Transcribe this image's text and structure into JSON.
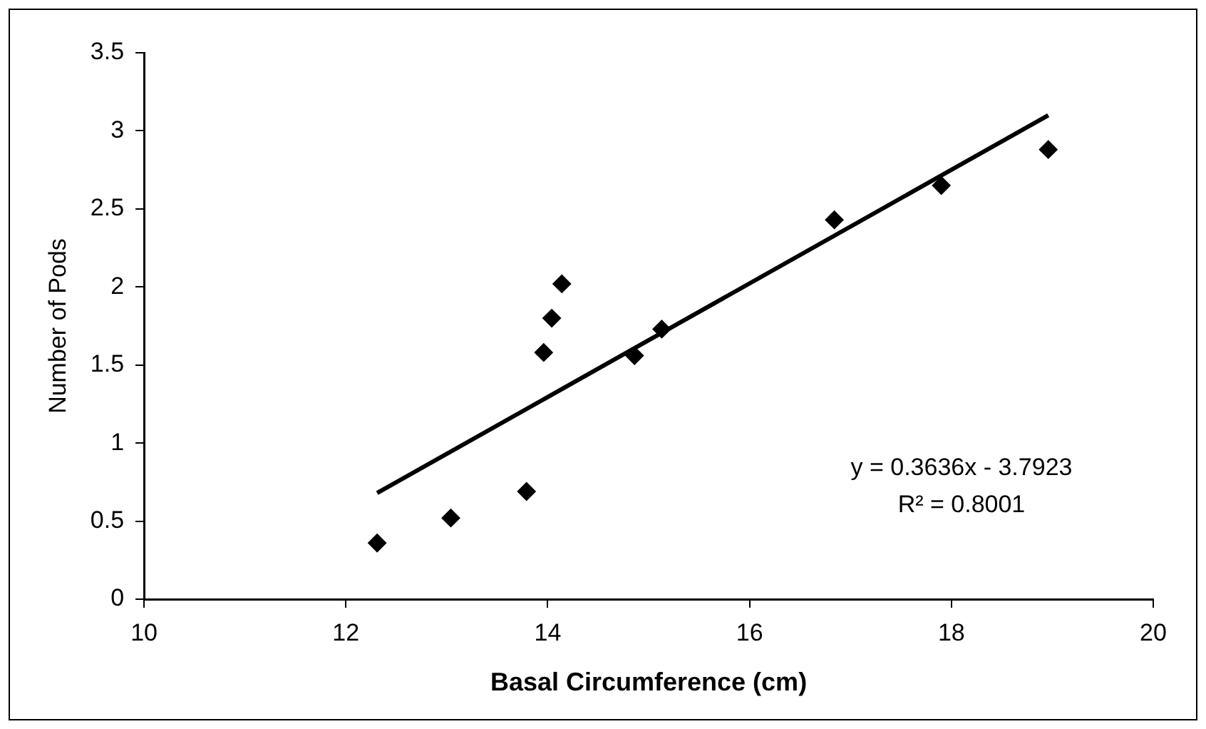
{
  "chart_data": {
    "type": "scatter",
    "xlabel": "Basal Circumference (cm)",
    "ylabel": "Number of Pods",
    "x": [
      12.31,
      13.04,
      13.79,
      13.96,
      14.04,
      14.14,
      14.86,
      15.13,
      16.84,
      17.9,
      18.96
    ],
    "series": [
      {
        "type": "scatter",
        "color": "#000000",
        "marker": "diamond",
        "values": [
          0.36,
          0.52,
          0.69,
          1.58,
          1.8,
          2.02,
          1.56,
          1.73,
          2.43,
          2.65,
          2.88
        ]
      },
      {
        "type": "line",
        "color": "#000000",
        "marker": "none",
        "x": [
          12.31,
          18.96
        ],
        "values": [
          0.68,
          3.1
        ]
      }
    ],
    "annotations": [
      "y = 0.3636x - 3.7923",
      "R² = 0.8001"
    ],
    "xlim": [
      10,
      20
    ],
    "xticks": [
      10,
      12,
      14,
      16,
      18,
      20
    ],
    "ylim": [
      0,
      3.5
    ],
    "yticks": [
      0,
      0.5,
      1,
      1.5,
      2,
      2.5,
      3,
      3.5
    ],
    "grid": false,
    "legend": false
  }
}
